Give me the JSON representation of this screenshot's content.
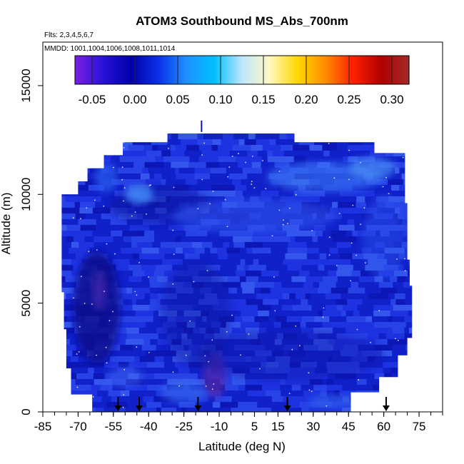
{
  "chart_data": {
    "type": "heatmap",
    "title": "ATOM3 Southbound MS_Abs_700nm",
    "flights_label": "Flts: 2,3,4,5,6,7",
    "dates_label": "MMDD: 1001,1004,1006,1008,1011,1014",
    "xlabel": "Latitude (deg N)",
    "ylabel": "Altitude (m)",
    "xlim": [
      -85,
      85
    ],
    "ylim": [
      0,
      17000
    ],
    "x_ticks": [
      -85,
      -70,
      -55,
      -40,
      -25,
      -10,
      5,
      15,
      30,
      45,
      60,
      75
    ],
    "y_ticks": [
      0,
      5000,
      10000,
      15000
    ],
    "colorbar": {
      "min": -0.07,
      "max": 0.32,
      "ticks": [
        -0.05,
        0.0,
        0.05,
        0.1,
        0.15,
        0.2,
        0.25,
        0.3
      ],
      "tick_labels": [
        "-0.05",
        "0.00",
        "0.05",
        "0.10",
        "0.15",
        "0.20",
        "0.25",
        "0.30"
      ],
      "colors": [
        "#7b1fe0",
        "#2a12d8",
        "#0000a8",
        "#0a30e8",
        "#1e90ff",
        "#00bfff",
        "#bfe6ff",
        "#fff8c0",
        "#ffd700",
        "#ff8c00",
        "#ff2000",
        "#b00000",
        "#a52a2a"
      ]
    },
    "field_color_base": "#1a28d8",
    "profile_markers_lat": [
      -53,
      -44,
      -19,
      19,
      61
    ],
    "top_marker_lat": -17.5,
    "grid": false,
    "legend_position": "top-center"
  }
}
